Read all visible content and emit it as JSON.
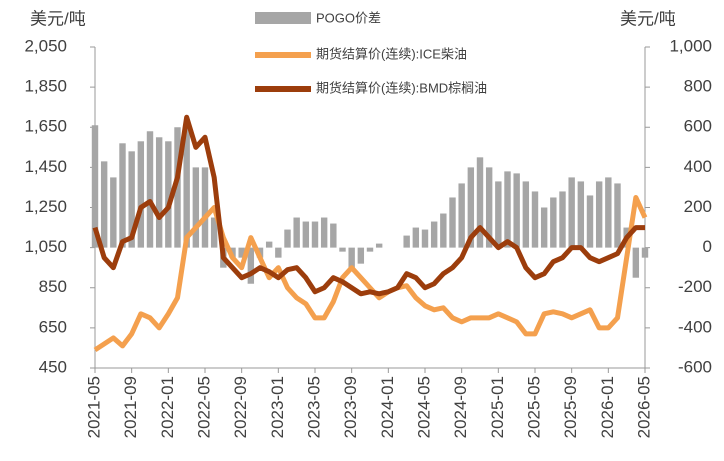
{
  "chart_data": {
    "type": "line",
    "y_label": "美元/吨",
    "y2_label": "美元/吨",
    "x": [
      "2021-05",
      "2021-06",
      "2021-07",
      "2021-08",
      "2021-09",
      "2021-10",
      "2021-11",
      "2021-12",
      "2022-01",
      "2022-02",
      "2022-03",
      "2022-04",
      "2022-05",
      "2022-06",
      "2022-07",
      "2022-08",
      "2022-09",
      "2022-10",
      "2022-11",
      "2022-12",
      "2023-01",
      "2023-02",
      "2023-03",
      "2023-04",
      "2023-05",
      "2023-06",
      "2023-07",
      "2023-08",
      "2023-09",
      "2023-10",
      "2023-11",
      "2023-12",
      "2024-01",
      "2024-02",
      "2024-03",
      "2024-04",
      "2024-05",
      "2024-06",
      "2024-07",
      "2024-08",
      "2024-09",
      "2024-10",
      "2024-11",
      "2024-12",
      "2025-01",
      "2025-02",
      "2025-03",
      "2025-04",
      "2025-05",
      "2025-06",
      "2025-07",
      "2025-08",
      "2025-09",
      "2025-10",
      "2025-11",
      "2025-12",
      "2026-01",
      "2026-02",
      "2026-03",
      "2026-04",
      "2026-05"
    ],
    "xticks": [
      "2021-05",
      "2021-09",
      "2022-01",
      "2022-05",
      "2022-09",
      "2023-01",
      "2023-05",
      "2023-09",
      "2024-01",
      "2024-05",
      "2024-09",
      "2025-01",
      "2025-05",
      "2025-09",
      "2026-01",
      "2026-05"
    ],
    "ylim": [
      450,
      2050
    ],
    "yticks": [
      450,
      650,
      850,
      {
        "value": 1050,
        "label": "1,050"
      },
      {
        "value": 1250,
        "label": "1,250"
      },
      {
        "value": 1450,
        "label": "1,450"
      },
      {
        "value": 1650,
        "label": "1,650"
      },
      {
        "value": 1850,
        "label": "1,850"
      },
      {
        "value": 2050,
        "label": "2,050"
      }
    ],
    "y2lim": [
      -600,
      1000
    ],
    "y2ticks": [
      -600,
      -400,
      -200,
      0,
      200,
      400,
      600,
      800,
      {
        "value": 1000,
        "label": "1,000"
      }
    ],
    "series": [
      {
        "name": "POGO价差",
        "type": "bar",
        "axis": "y2",
        "color": "#a6a6a6",
        "values": [
          610,
          430,
          350,
          520,
          480,
          530,
          580,
          550,
          530,
          600,
          600,
          400,
          400,
          150,
          -100,
          -50,
          -50,
          -180,
          -50,
          30,
          -50,
          90,
          150,
          130,
          130,
          150,
          120,
          -20,
          -100,
          -80,
          -20,
          20,
          0,
          0,
          60,
          100,
          90,
          130,
          170,
          250,
          320,
          400,
          450,
          400,
          330,
          380,
          370,
          330,
          280,
          200,
          250,
          280,
          350,
          330,
          260,
          330,
          350,
          320,
          100,
          -150,
          -50
        ]
      },
      {
        "name": "期货结算价(连续):ICE柴油",
        "type": "line",
        "color": "#f4a04e",
        "values": [
          540,
          570,
          600,
          560,
          620,
          720,
          700,
          650,
          720,
          800,
          1100,
          1150,
          1200,
          1250,
          1100,
          1000,
          950,
          1100,
          1000,
          900,
          950,
          850,
          800,
          770,
          700,
          700,
          780,
          900,
          950,
          900,
          850,
          800,
          830,
          850,
          860,
          800,
          760,
          740,
          750,
          700,
          680,
          700,
          700,
          700,
          720,
          700,
          680,
          620,
          620,
          720,
          730,
          720,
          700,
          720,
          740,
          650,
          650,
          700,
          1000,
          1300,
          1200
        ]
      },
      {
        "name": "期货结算价(连续):BMD棕榈油",
        "type": "line",
        "color": "#9c3d0c",
        "values": [
          1150,
          1000,
          950,
          1080,
          1100,
          1250,
          1280,
          1200,
          1250,
          1400,
          1700,
          1550,
          1600,
          1400,
          1000,
          950,
          900,
          920,
          950,
          930,
          900,
          940,
          950,
          900,
          830,
          850,
          900,
          880,
          850,
          820,
          830,
          820,
          830,
          850,
          920,
          900,
          850,
          870,
          920,
          950,
          1000,
          1100,
          1150,
          1100,
          1050,
          1080,
          1050,
          950,
          900,
          920,
          980,
          1000,
          1050,
          1050,
          1000,
          980,
          1000,
          1020,
          1100,
          1150,
          1150
        ]
      }
    ]
  }
}
